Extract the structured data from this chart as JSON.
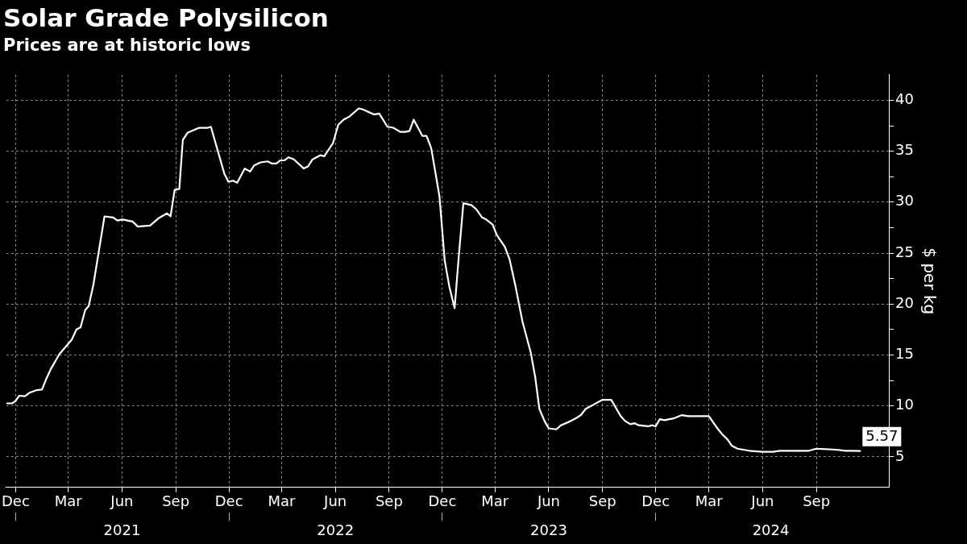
{
  "chart_data": {
    "type": "line",
    "title": "Solar Grade Polysilicon",
    "subtitle": "Prices are at historic lows",
    "ylabel": "$ per kg",
    "x": [
      "2020-11-15",
      "2020-11-25",
      "2020-12-01",
      "2020-12-07",
      "2020-12-17",
      "2020-12-25",
      "2021-01-06",
      "2021-01-15",
      "2021-01-22",
      "2021-01-30",
      "2021-02-14",
      "2021-03-07",
      "2021-03-15",
      "2021-03-22",
      "2021-03-30",
      "2021-04-05",
      "2021-04-13",
      "2021-05-02",
      "2021-05-17",
      "2021-05-24",
      "2021-06-02",
      "2021-06-19",
      "2021-06-28",
      "2021-07-19",
      "2021-08-02",
      "2021-08-17",
      "2021-08-23",
      "2021-08-30",
      "2021-09-07",
      "2021-09-13",
      "2021-09-21",
      "2021-10-11",
      "2021-10-26",
      "2021-10-31",
      "2021-11-23",
      "2021-11-30",
      "2021-12-08",
      "2021-12-15",
      "2021-12-28",
      "2022-01-06",
      "2022-01-13",
      "2022-01-24",
      "2022-02-05",
      "2022-02-12",
      "2022-02-20",
      "2022-02-27",
      "2022-03-06",
      "2022-03-13",
      "2022-03-22",
      "2022-04-08",
      "2022-04-15",
      "2022-04-23",
      "2022-05-06",
      "2022-05-13",
      "2022-05-28",
      "2022-06-06",
      "2022-06-15",
      "2022-06-25",
      "2022-07-11",
      "2022-07-18",
      "2022-08-06",
      "2022-08-15",
      "2022-08-29",
      "2022-09-08",
      "2022-09-20",
      "2022-09-29",
      "2022-10-06",
      "2022-10-13",
      "2022-10-28",
      "2022-11-04",
      "2022-11-12",
      "2022-11-26",
      "2022-12-05",
      "2022-12-13",
      "2022-12-22",
      "2022-12-29",
      "2023-01-06",
      "2023-01-20",
      "2023-01-28",
      "2023-02-07",
      "2023-02-14",
      "2023-02-25",
      "2023-03-04",
      "2023-03-18",
      "2023-03-26",
      "2023-04-05",
      "2023-04-17",
      "2023-05-01",
      "2023-05-09",
      "2023-05-16",
      "2023-05-25",
      "2023-06-01",
      "2023-06-14",
      "2023-06-22",
      "2023-07-08",
      "2023-07-18",
      "2023-07-26",
      "2023-08-03",
      "2023-08-19",
      "2023-09-01",
      "2023-09-16",
      "2023-09-23",
      "2023-10-02",
      "2023-10-10",
      "2023-10-19",
      "2023-10-26",
      "2023-11-02",
      "2023-11-18",
      "2023-11-25",
      "2023-12-01",
      "2023-12-08",
      "2023-12-16",
      "2024-01-02",
      "2024-01-15",
      "2024-01-25",
      "2024-03-01",
      "2024-03-13",
      "2024-03-24",
      "2024-04-02",
      "2024-04-09",
      "2024-04-19",
      "2024-05-09",
      "2024-06-01",
      "2024-06-19",
      "2024-06-30",
      "2024-07-21",
      "2024-08-19",
      "2024-09-01",
      "2024-10-05",
      "2024-10-21",
      "2024-11-02",
      "2024-11-16"
    ],
    "series": [
      {
        "color": "#ffffff",
        "values": [
          10.25,
          10.25,
          10.5,
          11.0,
          10.95,
          11.3,
          11.55,
          11.6,
          12.6,
          13.6,
          15.1,
          16.5,
          17.5,
          17.7,
          19.4,
          19.8,
          21.9,
          28.6,
          28.5,
          28.2,
          28.3,
          28.1,
          27.6,
          27.7,
          28.4,
          28.9,
          28.6,
          31.2,
          31.3,
          36.1,
          36.8,
          37.3,
          37.3,
          37.4,
          32.8,
          32.0,
          32.1,
          31.9,
          33.3,
          33.0,
          33.6,
          33.9,
          34.0,
          33.8,
          33.8,
          34.1,
          34.1,
          34.4,
          34.2,
          33.3,
          33.5,
          34.2,
          34.6,
          34.5,
          35.8,
          37.6,
          38.1,
          38.4,
          39.2,
          39.1,
          38.6,
          38.7,
          37.4,
          37.3,
          36.9,
          36.9,
          37.0,
          38.1,
          36.5,
          36.5,
          35.3,
          30.6,
          24.3,
          21.7,
          19.6,
          24.6,
          29.9,
          29.7,
          29.3,
          28.5,
          28.3,
          27.8,
          26.8,
          25.6,
          24.4,
          21.8,
          18.3,
          15.3,
          12.8,
          9.7,
          8.5,
          7.8,
          7.7,
          8.1,
          8.5,
          8.8,
          9.1,
          9.7,
          10.2,
          10.6,
          10.6,
          9.9,
          9.0,
          8.5,
          8.2,
          8.3,
          8.1,
          8.0,
          8.1,
          8.0,
          8.7,
          8.6,
          8.8,
          9.1,
          9.0,
          9.0,
          8.0,
          7.2,
          6.7,
          6.1,
          5.8,
          5.6,
          5.5,
          5.5,
          5.6,
          5.6,
          5.6,
          5.8,
          5.7,
          5.6,
          5.6,
          5.57
        ]
      }
    ],
    "xlim": [
      "2020-11-15",
      "2025-01-03"
    ],
    "xticks": [
      {
        "value": "2020-12-01",
        "label": "Dec"
      },
      {
        "value": "2021-03-01",
        "label": "Mar"
      },
      {
        "value": "2021-06-01",
        "label": "Jun"
      },
      {
        "value": "2021-09-01",
        "label": "Sep"
      },
      {
        "value": "2021-12-01",
        "label": "Dec"
      },
      {
        "value": "2022-03-01",
        "label": "Mar"
      },
      {
        "value": "2022-06-01",
        "label": "Jun"
      },
      {
        "value": "2022-09-01",
        "label": "Sep"
      },
      {
        "value": "2022-12-01",
        "label": "Dec"
      },
      {
        "value": "2023-03-01",
        "label": "Mar"
      },
      {
        "value": "2023-06-01",
        "label": "Jun"
      },
      {
        "value": "2023-09-01",
        "label": "Sep"
      },
      {
        "value": "2023-12-01",
        "label": "Dec"
      },
      {
        "value": "2024-03-01",
        "label": "Mar"
      },
      {
        "value": "2024-06-01",
        "label": "Jun"
      },
      {
        "value": "2024-09-01",
        "label": "Sep"
      }
    ],
    "x2lim": [
      "2020-11-15",
      "2025-01-03"
    ],
    "x2ticks": [
      {
        "value": "2020-12-01",
        "label": null
      },
      {
        "value": "2021-06-01",
        "label": "2021"
      },
      {
        "value": "2021-12-01",
        "label": null
      },
      {
        "value": "2022-06-01",
        "label": "2022"
      },
      {
        "value": "2022-12-01",
        "label": null
      },
      {
        "value": "2023-06-01",
        "label": "2023"
      },
      {
        "value": "2023-12-01",
        "label": null
      },
      {
        "value": "2024-06-15",
        "label": "2024"
      }
    ],
    "ylim": [
      2,
      42.5
    ],
    "yticks": [
      5,
      {
        "value": 7.5,
        "label": null
      },
      10,
      {
        "value": 12.5,
        "label": null
      },
      15,
      {
        "value": 17.5,
        "label": null
      },
      20,
      {
        "value": 22.5,
        "label": null
      },
      25,
      {
        "value": 27.5,
        "label": null
      },
      30,
      {
        "value": 32.5,
        "label": null
      },
      35,
      {
        "value": 37.5,
        "label": null
      },
      40
    ],
    "grid": true,
    "line_style": "solid",
    "marker": "none",
    "legend": false,
    "annotations": [
      {
        "text": "5.57",
        "x": "2024-11-16",
        "y": 5.57
      }
    ]
  }
}
